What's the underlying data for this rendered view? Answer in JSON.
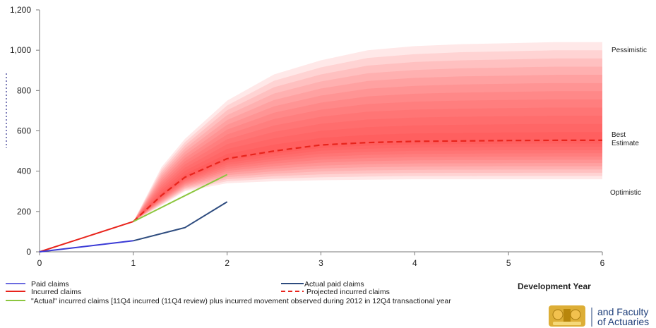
{
  "chart_data": {
    "type": "line",
    "title": "",
    "xlabel": "Development Year",
    "ylabel": "",
    "xlim": [
      0,
      6
    ],
    "ylim": [
      0,
      1200
    ],
    "x_ticks": [
      0,
      1,
      2,
      3,
      4,
      5,
      6
    ],
    "y_ticks": [
      0,
      200,
      400,
      600,
      800,
      1000,
      1200
    ],
    "x_tick_labels": [
      "0",
      "1",
      "2",
      "3",
      "4",
      "5",
      "6"
    ],
    "y_tick_labels": [
      "0",
      "200",
      "400",
      "600",
      "800",
      "1,000",
      "1,200"
    ],
    "grid": false,
    "legend_position": "bottom",
    "series": [
      {
        "name": "Paid claims",
        "color": "#3b3bd6",
        "style": "solid",
        "x": [
          0,
          1
        ],
        "y": [
          0,
          55
        ]
      },
      {
        "name": "Actual  paid claims",
        "color": "#2e4c7f",
        "style": "solid",
        "x": [
          1,
          1.55,
          2
        ],
        "y": [
          55,
          120,
          248
        ]
      },
      {
        "name": "Incurred claims",
        "color": "#e8241c",
        "style": "solid",
        "x": [
          0,
          1
        ],
        "y": [
          0,
          150
        ]
      },
      {
        "name": "Projected incurred claims",
        "color": "#e8241c",
        "style": "dashed",
        "x": [
          1,
          1.3,
          1.55,
          2,
          2.5,
          3,
          3.5,
          4,
          4.5,
          5,
          5.5,
          6
        ],
        "y": [
          150,
          280,
          370,
          462,
          500,
          530,
          542,
          548,
          550,
          552,
          553,
          553
        ]
      },
      {
        "name": "\"Actual\" incurred claims [11Q4 incurred (11Q4 review) plus incurred movement observed during 2012 in 12Q4 transactional year",
        "color": "#8cc63f",
        "style": "solid",
        "x": [
          1,
          2
        ],
        "y": [
          150,
          383
        ]
      }
    ],
    "fan": {
      "x": [
        1,
        1.3,
        1.55,
        2,
        2.5,
        3,
        3.5,
        4,
        4.5,
        5,
        5.5,
        6
      ],
      "upper": [
        150,
        420,
        560,
        750,
        880,
        950,
        1000,
        1020,
        1030,
        1035,
        1040,
        1040
      ],
      "lower": [
        150,
        230,
        300,
        340,
        350,
        355,
        358,
        360,
        360,
        360,
        360,
        360
      ],
      "color": "#ff3030"
    },
    "annotations": {
      "pessimistic": "Pessimistic",
      "best_estimate_line1": "Best",
      "best_estimate_line2": "Estimate",
      "optimistic": "Optimistic"
    }
  },
  "logo": {
    "line1": "and Faculty",
    "line2": "of Actuaries",
    "color": "#1f3f7a",
    "crest_color": "#d9a520"
  }
}
